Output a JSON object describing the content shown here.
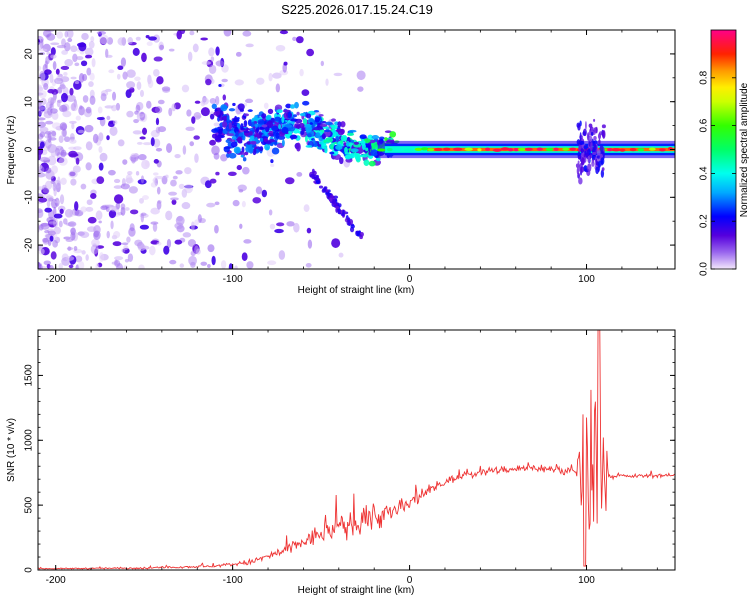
{
  "title": "S225.2026.017.15.24.C19",
  "chart_data": [
    {
      "type": "heatmap",
      "name": "spectrogram",
      "xlabel": "Height of straight line (km)",
      "ylabel": "Frequency (Hz)",
      "xlim": [
        -210,
        150
      ],
      "ylim": [
        -25,
        25
      ],
      "xticks": [
        -200,
        -100,
        0,
        100
      ],
      "xtick_labels": [
        "-200",
        "-100",
        "0",
        "100"
      ],
      "yticks": [
        -20,
        -10,
        0,
        10,
        20
      ],
      "ytick_labels": [
        "-20",
        "-10",
        "0",
        "10",
        "20"
      ],
      "colorbar": {
        "label": "Normalized spectral amplitude",
        "range": [
          0,
          1
        ],
        "ticks": [
          0.0,
          0.2,
          0.4,
          0.6,
          0.8
        ],
        "tick_labels": [
          "0.0",
          "0.2",
          "0.4",
          "0.6",
          "0.8"
        ]
      },
      "features": {
        "carrier_frequency_hz": 0,
        "carrier_strong_from_km": 10,
        "scatter_noise_region_km": [
          -210,
          -90
        ],
        "dispersed_streak_start": {
          "x_km": -110,
          "f_hz": 6
        },
        "dispersed_streak_end": {
          "x_km": -10,
          "f_hz": 1
        },
        "descending_branch": [
          {
            "x_km": -55,
            "f_hz": -5
          },
          {
            "x_km": -28,
            "f_hz": -18
          }
        ],
        "burst_around_km": [
          95,
          110
        ]
      }
    },
    {
      "type": "line",
      "name": "snr",
      "xlabel": "Height of straight line (km)",
      "ylabel": "SNR (10 * v/v)",
      "xlim": [
        -210,
        150
      ],
      "ylim": [
        0,
        1850
      ],
      "xticks": [
        -200,
        -100,
        0,
        100
      ],
      "xtick_labels": [
        "-200",
        "-100",
        "0",
        "100"
      ],
      "yticks": [
        0,
        500,
        1000,
        1500
      ],
      "ytick_labels": [
        "0",
        "500",
        "1000",
        "1500"
      ],
      "color": "#ee3333",
      "profile": [
        {
          "x": -210,
          "y": 10
        },
        {
          "x": -150,
          "y": 15
        },
        {
          "x": -110,
          "y": 30
        },
        {
          "x": -90,
          "y": 60
        },
        {
          "x": -70,
          "y": 150
        },
        {
          "x": -50,
          "y": 280
        },
        {
          "x": -30,
          "y": 370
        },
        {
          "x": -10,
          "y": 440
        },
        {
          "x": 0,
          "y": 510
        },
        {
          "x": 10,
          "y": 600
        },
        {
          "x": 20,
          "y": 680
        },
        {
          "x": 30,
          "y": 730
        },
        {
          "x": 50,
          "y": 770
        },
        {
          "x": 70,
          "y": 790
        },
        {
          "x": 90,
          "y": 760
        },
        {
          "x": 100,
          "y": 720
        },
        {
          "x": 110,
          "y": 720
        },
        {
          "x": 150,
          "y": 730
        }
      ],
      "noise_amplitude_profile": [
        {
          "x": -210,
          "y": 6
        },
        {
          "x": -110,
          "y": 15
        },
        {
          "x": -80,
          "y": 50
        },
        {
          "x": -50,
          "y": 130
        },
        {
          "x": -20,
          "y": 170
        },
        {
          "x": 0,
          "y": 110
        },
        {
          "x": 20,
          "y": 50
        },
        {
          "x": 60,
          "y": 50
        },
        {
          "x": 90,
          "y": 60
        },
        {
          "x": 115,
          "y": 25
        },
        {
          "x": 150,
          "y": 22
        }
      ],
      "burst_region_km": [
        95,
        112
      ],
      "burst_peak": {
        "x": 107,
        "y": 1850
      },
      "burst_trough": {
        "x": 99,
        "y": 30
      }
    }
  ]
}
